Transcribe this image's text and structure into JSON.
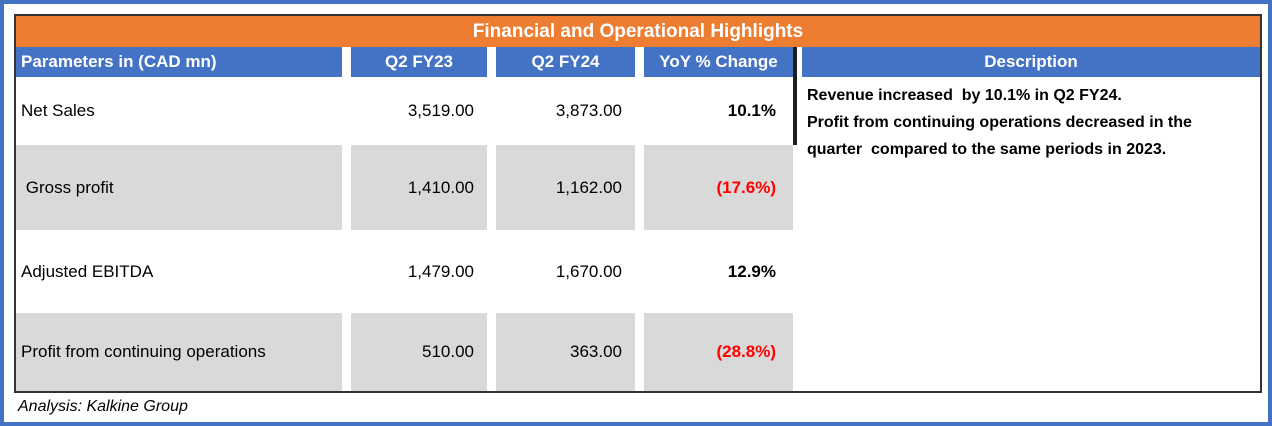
{
  "title": "Financial and Operational Highlights",
  "header": {
    "parameters": "Parameters in (CAD mn)",
    "q2fy23": "Q2 FY23",
    "q2fy24": "Q2 FY24",
    "yoy": "YoY % Change",
    "description": "Description"
  },
  "rows": [
    {
      "label": "Net Sales",
      "q2fy23": "3,519.00",
      "q2fy24": "3,873.00",
      "yoy": "10.1%"
    },
    {
      "label": " Gross profit",
      "q2fy23": "1,410.00",
      "q2fy24": "1,162.00",
      "yoy": "(17.6%)"
    },
    {
      "label": "Adjusted EBITDA",
      "q2fy23": "1,479.00",
      "q2fy24": "1,670.00",
      "yoy": "12.9%"
    },
    {
      "label": "Profit from continuing operations",
      "q2fy23": "510.00",
      "q2fy24": "363.00",
      "yoy": "(28.8%)"
    }
  ],
  "description": {
    "line1": "Revenue increased  by 10.1% in Q2 FY24.",
    "line2": "Profit from continuing operations decreased in the quarter  compared to the same periods in 2023."
  },
  "footer": "Analysis: Kalkine Group",
  "colors": {
    "title_bar": "#ED7D31",
    "header_bar": "#4472C4",
    "shaded_row": "#D9D9D9",
    "negative_value": "#FF0000",
    "frame_border": "#4472C4",
    "table_border": "#333333"
  },
  "chart_data": {
    "type": "table",
    "title": "Financial and Operational Highlights",
    "columns": [
      "Parameters in (CAD mn)",
      "Q2 FY23",
      "Q2 FY24",
      "YoY % Change",
      "Description"
    ],
    "rows": [
      [
        "Net Sales",
        3519.0,
        3873.0,
        "10.1%"
      ],
      [
        "Gross profit",
        1410.0,
        1162.0,
        "(17.6%)"
      ],
      [
        "Adjusted EBITDA",
        1479.0,
        1670.0,
        "12.9%"
      ],
      [
        "Profit from continuing operations",
        510.0,
        363.0,
        "(28.8%)"
      ]
    ],
    "description": "Revenue increased by 10.1% in Q2 FY24. Profit from continuing operations decreased in the quarter compared to the same periods in 2023.",
    "source": "Analysis: Kalkine Group"
  }
}
